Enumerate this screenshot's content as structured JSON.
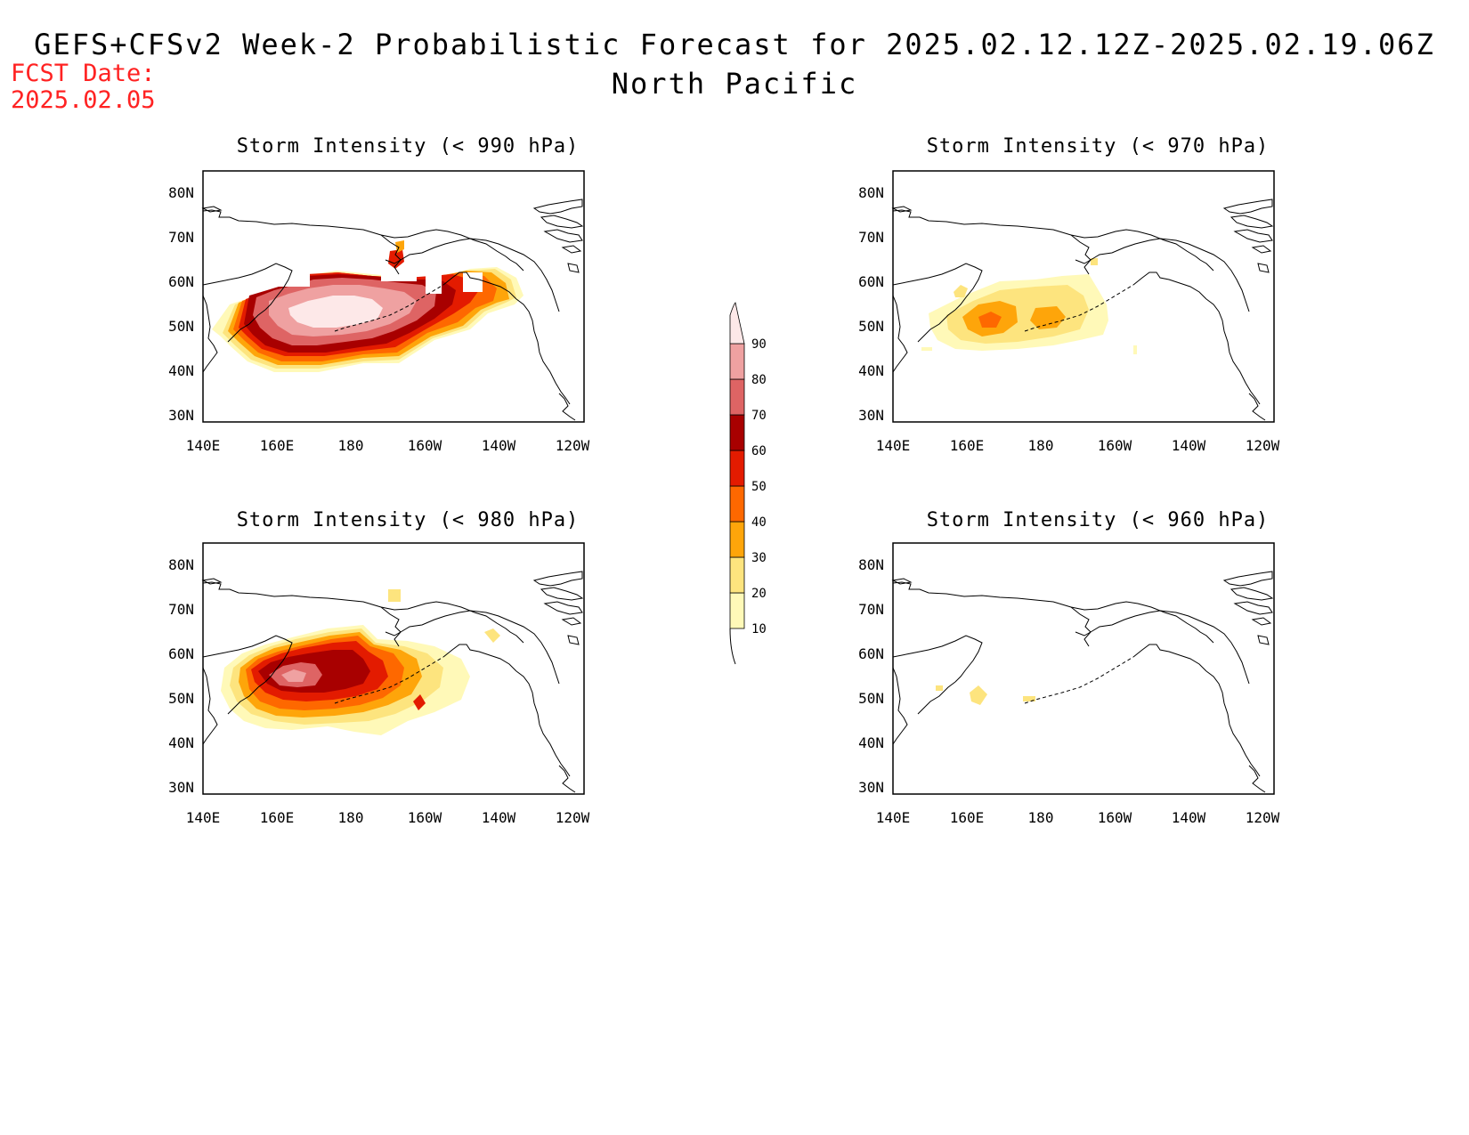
{
  "header": {
    "title": "GEFS+CFSv2 Week-2 Probabilistic Forecast for 2025.02.12.12Z-2025.02.19.06Z",
    "subtitle": "North Pacific",
    "fcst_label": "FCST Date:",
    "fcst_date": "2025.02.05"
  },
  "map_axes": {
    "lon_labels": [
      "140E",
      "160E",
      "180",
      "160W",
      "140W",
      "120W"
    ],
    "lat_labels": [
      "80N",
      "70N",
      "60N",
      "50N",
      "40N",
      "30N"
    ]
  },
  "panels": [
    {
      "id": "p990",
      "title": "Storm Intensity (< 990 hPa)"
    },
    {
      "id": "p970",
      "title": "Storm Intensity (< 970 hPa)"
    },
    {
      "id": "p980",
      "title": "Storm Intensity (< 980 hPa)"
    },
    {
      "id": "p960",
      "title": "Storm Intensity (< 960 hPa)"
    }
  ],
  "colorbar": {
    "levels": [
      "10",
      "20",
      "30",
      "40",
      "50",
      "60",
      "70",
      "80",
      "90"
    ],
    "colors": [
      "#fff9b8",
      "#fde47e",
      "#fea50a",
      "#fe6800",
      "#e31b00",
      "#a80000",
      "#de6464",
      "#efa1a1",
      "#fde8e8"
    ]
  }
}
